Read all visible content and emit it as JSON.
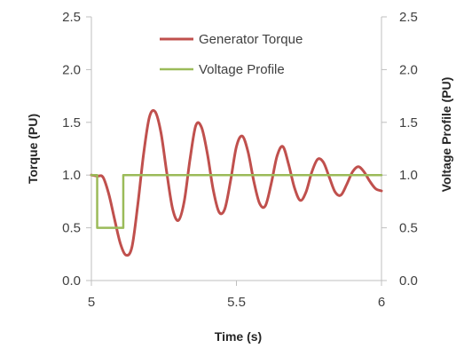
{
  "chart_data": {
    "type": "line",
    "xlabel": "Time (s)",
    "ylabel_left": "Torque (PU)",
    "ylabel_right": "Voltage Profile (PU)",
    "xlim": [
      5,
      6
    ],
    "ylim_left": [
      0,
      2.5
    ],
    "ylim_right": [
      0,
      2.5
    ],
    "x_ticks": [
      "5",
      "5.5",
      "6"
    ],
    "x_tick_values": [
      5,
      5.5,
      6
    ],
    "y_ticks_left": [
      "0.0",
      "0.5",
      "1.0",
      "1.5",
      "2.0",
      "2.5"
    ],
    "y_ticks_right": [
      "0.0",
      "0.5",
      "1.0",
      "1.5",
      "2.0",
      "2.5"
    ],
    "y_tick_values": [
      0,
      0.5,
      1.0,
      1.5,
      2.0,
      2.5
    ],
    "grid": false,
    "legend_placement": "top-center",
    "series": [
      {
        "name": "Generator Torque",
        "color": "#c0504d",
        "axis": "left",
        "x": [
          5.0,
          5.02,
          5.04,
          5.06,
          5.08,
          5.1,
          5.12,
          5.14,
          5.16,
          5.18,
          5.2,
          5.22,
          5.24,
          5.26,
          5.28,
          5.3,
          5.32,
          5.34,
          5.36,
          5.38,
          5.4,
          5.42,
          5.44,
          5.46,
          5.48,
          5.5,
          5.52,
          5.54,
          5.56,
          5.58,
          5.6,
          5.62,
          5.64,
          5.66,
          5.68,
          5.7,
          5.72,
          5.74,
          5.76,
          5.78,
          5.8,
          5.82,
          5.84,
          5.86,
          5.88,
          5.9,
          5.92,
          5.94,
          5.96,
          5.98,
          6.0
        ],
        "values": [
          1.0,
          0.99,
          0.98,
          0.82,
          0.58,
          0.35,
          0.24,
          0.32,
          0.72,
          1.2,
          1.55,
          1.6,
          1.4,
          1.02,
          0.68,
          0.57,
          0.75,
          1.15,
          1.47,
          1.45,
          1.2,
          0.86,
          0.65,
          0.68,
          0.95,
          1.27,
          1.37,
          1.22,
          0.94,
          0.73,
          0.71,
          0.92,
          1.18,
          1.27,
          1.1,
          0.88,
          0.76,
          0.84,
          1.03,
          1.15,
          1.12,
          0.98,
          0.84,
          0.81,
          0.91,
          1.03,
          1.08,
          1.03,
          0.94,
          0.87,
          0.85
        ]
      },
      {
        "name": "Voltage Profile",
        "color": "#9bbb59",
        "axis": "right",
        "x": [
          5.0,
          5.02,
          5.02,
          5.11,
          5.11,
          6.0
        ],
        "values": [
          1.0,
          1.0,
          0.5,
          0.5,
          1.0,
          1.0
        ]
      }
    ]
  }
}
